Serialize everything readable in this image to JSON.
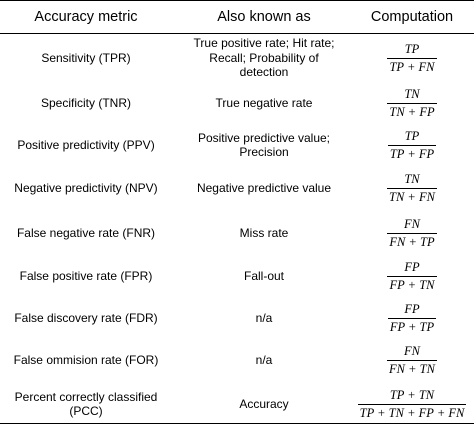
{
  "table": {
    "headers": [
      "Accuracy metric",
      "Also known as",
      "Computation"
    ],
    "rows": [
      {
        "metric": "Sensitivity (TPR)",
        "aka_lines": [
          "True positive rate; Hit rate;",
          "Recall; Probability of",
          "detection"
        ],
        "num": "TP",
        "den": "TP + FN"
      },
      {
        "metric": "Specificity (TNR)",
        "aka_lines": [
          "True negative rate"
        ],
        "num": "TN",
        "den": "TN + FP"
      },
      {
        "metric": "Positive predictivity (PPV)",
        "aka_lines": [
          "Positive predictive value;",
          "Precision"
        ],
        "num": "TP",
        "den": "TP + FP"
      },
      {
        "metric": "Negative predictivity (NPV)",
        "aka_lines": [
          "Negative predictive value"
        ],
        "num": "TN",
        "den": "TN + FN"
      },
      {
        "metric": "False negative rate (FNR)",
        "aka_lines": [
          "Miss rate"
        ],
        "num": "FN",
        "den": "FN + TP"
      },
      {
        "metric": "False positive rate (FPR)",
        "aka_lines": [
          "Fall-out"
        ],
        "num": "FP",
        "den": "FP + TN"
      },
      {
        "metric": "False discovery rate (FDR)",
        "aka_lines": [
          "n/a"
        ],
        "num": "FP",
        "den": "FP + TP"
      },
      {
        "metric": "False ommision rate (FOR)",
        "aka_lines": [
          "n/a"
        ],
        "num": "FN",
        "den": "FN + TN"
      },
      {
        "metric": "Percent correctly classified (PCC)",
        "aka_lines": [
          "Accuracy"
        ],
        "num": "TP + TN",
        "den": "TP + TN + FP + FN"
      }
    ]
  }
}
